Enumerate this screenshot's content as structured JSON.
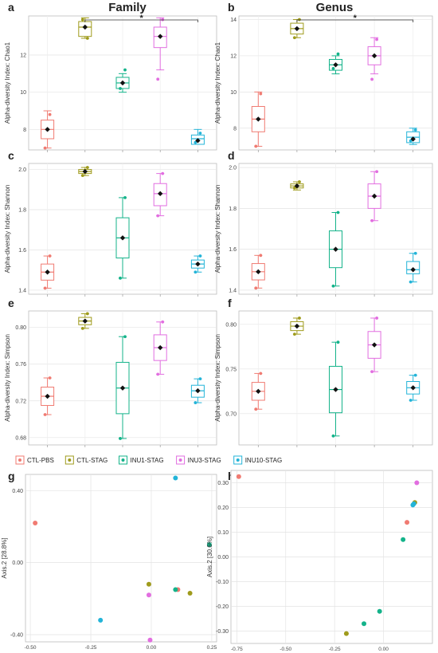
{
  "headers": {
    "left": "Family",
    "right": "Genus"
  },
  "colors": {
    "CTL-PBS": "#F07B72",
    "CTL-STAG": "#9F9B1C",
    "INU1-STAG": "#14B38A",
    "INU3-STAG": "#E26EE0",
    "INU10-STAG": "#23B4D8"
  },
  "legend": [
    {
      "name": "CTL-PBS",
      "color": "#F07B72"
    },
    {
      "name": "CTL-STAG",
      "color": "#9F9B1C"
    },
    {
      "name": "INU1-STAG",
      "color": "#14B38A"
    },
    {
      "name": "INU3-STAG",
      "color": "#E26EE0"
    },
    {
      "name": "INU10-STAG",
      "color": "#23B4D8"
    }
  ],
  "chart_data": [
    {
      "panel": "a",
      "type": "box",
      "column_header": "Family",
      "xlabel": "",
      "ylabel": "Alpha-diversity Index: Chao1",
      "ylim": [
        6.9,
        14.1
      ],
      "yticks": [
        8,
        10,
        12
      ],
      "categories": [
        "CTL-PBS",
        "CTL-STAG",
        "INU1-STAG",
        "INU3-STAG",
        "INU10-STAG"
      ],
      "boxes": [
        {
          "q1": 7.5,
          "median": 8.0,
          "q3": 8.5,
          "min": 7.0,
          "max": 9.0,
          "mean": 8.0,
          "points": [
            7.0,
            8.8
          ]
        },
        {
          "q1": 13.0,
          "median": 13.5,
          "q3": 13.8,
          "min": 12.9,
          "max": 14.0,
          "mean": 13.5,
          "points": [
            13.9,
            12.9
          ]
        },
        {
          "q1": 10.2,
          "median": 10.5,
          "q3": 10.8,
          "min": 10.0,
          "max": 11.0,
          "mean": 10.5,
          "points": [
            10.2,
            11.2
          ]
        },
        {
          "q1": 12.4,
          "median": 13.0,
          "q3": 13.5,
          "min": 11.2,
          "max": 14.0,
          "mean": 13.0,
          "points": [
            10.7,
            13.9
          ]
        },
        {
          "q1": 7.2,
          "median": 7.5,
          "q3": 7.7,
          "min": 7.2,
          "max": 8.0,
          "mean": 7.4,
          "points": [
            7.3,
            7.8
          ]
        }
      ],
      "significance": {
        "from": "CTL-STAG",
        "to": "INU10-STAG",
        "label": "*"
      }
    },
    {
      "panel": "b",
      "type": "box",
      "column_header": "Genus",
      "xlabel": "",
      "ylabel": "Alpha-diversity Index: Chao1",
      "ylim": [
        6.8,
        14.2
      ],
      "yticks": [
        8,
        10,
        12,
        14
      ],
      "categories": [
        "CTL-PBS",
        "CTL-STAG",
        "INU1-STAG",
        "INU3-STAG",
        "INU10-STAG"
      ],
      "boxes": [
        {
          "q1": 7.8,
          "median": 8.5,
          "q3": 9.2,
          "min": 7.0,
          "max": 10.0,
          "mean": 8.5,
          "points": [
            7.0,
            9.9
          ]
        },
        {
          "q1": 13.2,
          "median": 13.5,
          "q3": 13.8,
          "min": 13.0,
          "max": 14.0,
          "mean": 13.5,
          "points": [
            13.0,
            14.0
          ]
        },
        {
          "q1": 11.2,
          "median": 11.5,
          "q3": 11.8,
          "min": 11.0,
          "max": 12.0,
          "mean": 11.5,
          "points": [
            11.3,
            12.1
          ]
        },
        {
          "q1": 11.5,
          "median": 12.0,
          "q3": 12.5,
          "min": 11.0,
          "max": 13.0,
          "mean": 12.0,
          "points": [
            10.7,
            12.9
          ]
        },
        {
          "q1": 7.2,
          "median": 7.5,
          "q3": 7.8,
          "min": 7.1,
          "max": 8.0,
          "mean": 7.4,
          "points": [
            7.3,
            7.9
          ]
        }
      ],
      "significance": {
        "from": "CTL-STAG",
        "to": "INU10-STAG",
        "label": "*"
      }
    },
    {
      "panel": "c",
      "type": "box",
      "xlabel": "",
      "ylabel": "Alpha-diversity Index: Shannon",
      "ylim": [
        1.38,
        2.03
      ],
      "yticks": [
        1.4,
        1.6,
        1.8,
        2.0
      ],
      "categories": [
        "CTL-PBS",
        "CTL-STAG",
        "INU1-STAG",
        "INU3-STAG",
        "INU10-STAG"
      ],
      "boxes": [
        {
          "q1": 1.45,
          "median": 1.49,
          "q3": 1.53,
          "min": 1.41,
          "max": 1.57,
          "mean": 1.49,
          "points": [
            1.41,
            1.57
          ]
        },
        {
          "q1": 1.98,
          "median": 1.99,
          "q3": 2.0,
          "min": 1.97,
          "max": 2.01,
          "mean": 1.99,
          "points": [
            1.97,
            2.01
          ]
        },
        {
          "q1": 1.56,
          "median": 1.66,
          "q3": 1.76,
          "min": 1.46,
          "max": 1.86,
          "mean": 1.66,
          "points": [
            1.46,
            1.86
          ]
        },
        {
          "q1": 1.82,
          "median": 1.88,
          "q3": 1.93,
          "min": 1.77,
          "max": 1.98,
          "mean": 1.88,
          "points": [
            1.77,
            1.98
          ]
        },
        {
          "q1": 1.51,
          "median": 1.53,
          "q3": 1.55,
          "min": 1.49,
          "max": 1.57,
          "mean": 1.53,
          "points": [
            1.49,
            1.57
          ]
        }
      ]
    },
    {
      "panel": "d",
      "type": "box",
      "xlabel": "",
      "ylabel": "Alpha-diversity Index: Shannon",
      "ylim": [
        1.38,
        2.02
      ],
      "yticks": [
        1.4,
        1.6,
        1.8,
        2.0
      ],
      "categories": [
        "CTL-PBS",
        "CTL-STAG",
        "INU1-STAG",
        "INU3-STAG",
        "INU10-STAG"
      ],
      "boxes": [
        {
          "q1": 1.45,
          "median": 1.49,
          "q3": 1.53,
          "min": 1.41,
          "max": 1.57,
          "mean": 1.49,
          "points": [
            1.41,
            1.57
          ]
        },
        {
          "q1": 1.9,
          "median": 1.91,
          "q3": 1.92,
          "min": 1.89,
          "max": 1.93,
          "mean": 1.91,
          "points": [
            1.9,
            1.93
          ]
        },
        {
          "q1": 1.51,
          "median": 1.6,
          "q3": 1.69,
          "min": 1.42,
          "max": 1.78,
          "mean": 1.6,
          "points": [
            1.42,
            1.78
          ]
        },
        {
          "q1": 1.8,
          "median": 1.86,
          "q3": 1.92,
          "min": 1.74,
          "max": 1.98,
          "mean": 1.86,
          "points": [
            1.74,
            1.98
          ]
        },
        {
          "q1": 1.48,
          "median": 1.5,
          "q3": 1.54,
          "min": 1.44,
          "max": 1.58,
          "mean": 1.5,
          "points": [
            1.44,
            1.58
          ]
        }
      ]
    },
    {
      "panel": "e",
      "type": "box",
      "xlabel": "",
      "ylabel": "Alpha-diversity Index: Simpson",
      "ylim": [
        0.672,
        0.818
      ],
      "yticks": [
        0.68,
        0.72,
        0.76,
        0.8
      ],
      "categories": [
        "CTL-PBS",
        "CTL-STAG",
        "INU1-STAG",
        "INU3-STAG",
        "INU10-STAG"
      ],
      "boxes": [
        {
          "q1": 0.715,
          "median": 0.725,
          "q3": 0.735,
          "min": 0.705,
          "max": 0.745,
          "mean": 0.725,
          "points": [
            0.705,
            0.745
          ]
        },
        {
          "q1": 0.803,
          "median": 0.807,
          "q3": 0.811,
          "min": 0.799,
          "max": 0.815,
          "mean": 0.807,
          "points": [
            0.799,
            0.815
          ]
        },
        {
          "q1": 0.706,
          "median": 0.734,
          "q3": 0.762,
          "min": 0.679,
          "max": 0.79,
          "mean": 0.734,
          "points": [
            0.679,
            0.79
          ]
        },
        {
          "q1": 0.764,
          "median": 0.778,
          "q3": 0.792,
          "min": 0.749,
          "max": 0.806,
          "mean": 0.778,
          "points": [
            0.749,
            0.806
          ]
        },
        {
          "q1": 0.724,
          "median": 0.731,
          "q3": 0.737,
          "min": 0.718,
          "max": 0.744,
          "mean": 0.731,
          "points": [
            0.718,
            0.744
          ]
        }
      ]
    },
    {
      "panel": "f",
      "type": "box",
      "xlabel": "",
      "ylabel": "Alpha-diversity Index: Simpson",
      "ylim": [
        0.665,
        0.815
      ],
      "yticks": [
        0.7,
        0.75,
        0.8
      ],
      "categories": [
        "CTL-PBS",
        "CTL-STAG",
        "INU1-STAG",
        "INU3-STAG",
        "INU10-STAG"
      ],
      "boxes": [
        {
          "q1": 0.715,
          "median": 0.725,
          "q3": 0.735,
          "min": 0.705,
          "max": 0.745,
          "mean": 0.725,
          "points": [
            0.705,
            0.745
          ]
        },
        {
          "q1": 0.793,
          "median": 0.798,
          "q3": 0.803,
          "min": 0.789,
          "max": 0.807,
          "mean": 0.798,
          "points": [
            0.789,
            0.807
          ]
        },
        {
          "q1": 0.701,
          "median": 0.727,
          "q3": 0.753,
          "min": 0.675,
          "max": 0.78,
          "mean": 0.727,
          "points": [
            0.675,
            0.78
          ]
        },
        {
          "q1": 0.762,
          "median": 0.777,
          "q3": 0.792,
          "min": 0.747,
          "max": 0.807,
          "mean": 0.777,
          "points": [
            0.747,
            0.807
          ]
        },
        {
          "q1": 0.722,
          "median": 0.729,
          "q3": 0.736,
          "min": 0.715,
          "max": 0.743,
          "mean": 0.729,
          "points": [
            0.715,
            0.743
          ]
        }
      ]
    },
    {
      "panel": "g",
      "type": "scatter",
      "xlabel": "",
      "ylabel": "Axis.2   [28.8%]",
      "xlim": [
        -0.52,
        0.27
      ],
      "ylim": [
        -0.44,
        0.49
      ],
      "xticks": [
        -0.5,
        -0.25,
        0.0,
        0.25
      ],
      "yticks": [
        -0.4,
        0.0,
        0.4
      ],
      "points": [
        {
          "x": -0.48,
          "y": 0.22,
          "group": "CTL-PBS"
        },
        {
          "x": 0.11,
          "y": -0.15,
          "group": "CTL-PBS"
        },
        {
          "x": -0.01,
          "y": -0.12,
          "group": "CTL-STAG"
        },
        {
          "x": 0.16,
          "y": -0.17,
          "group": "CTL-STAG"
        },
        {
          "x": 0.24,
          "y": 0.1,
          "group": "INU1-STAG"
        },
        {
          "x": 0.1,
          "y": -0.15,
          "group": "INU1-STAG"
        },
        {
          "x": -0.01,
          "y": -0.18,
          "group": "INU3-STAG"
        },
        {
          "x": -0.005,
          "y": -0.43,
          "group": "INU3-STAG"
        },
        {
          "x": 0.1,
          "y": 0.47,
          "group": "INU10-STAG"
        },
        {
          "x": -0.21,
          "y": -0.32,
          "group": "INU10-STAG"
        }
      ]
    },
    {
      "panel": "h",
      "type": "scatter",
      "xlabel": "",
      "ylabel": "Axis.2   [30.6%]",
      "xlim": [
        -0.78,
        0.25
      ],
      "ylim": [
        -0.35,
        0.35
      ],
      "xticks": [
        -0.75,
        -0.5,
        -0.25,
        0.0
      ],
      "yticks": [
        -0.3,
        -0.2,
        -0.1,
        0.0,
        0.1,
        0.2,
        0.3
      ],
      "points": [
        {
          "x": -0.74,
          "y": 0.325,
          "group": "CTL-PBS"
        },
        {
          "x": 0.12,
          "y": 0.14,
          "group": "CTL-PBS"
        },
        {
          "x": -0.19,
          "y": -0.31,
          "group": "CTL-STAG"
        },
        {
          "x": 0.16,
          "y": 0.22,
          "group": "CTL-STAG"
        },
        {
          "x": -0.02,
          "y": -0.22,
          "group": "INU1-STAG"
        },
        {
          "x": -0.1,
          "y": -0.27,
          "group": "INU1-STAG"
        },
        {
          "x": 0.1,
          "y": 0.07,
          "group": "INU1-STAG"
        },
        {
          "x": 0.17,
          "y": 0.3,
          "group": "INU3-STAG"
        },
        {
          "x": 0.15,
          "y": 0.21,
          "group": "INU10-STAG"
        },
        {
          "x": 0.155,
          "y": 0.215,
          "group": "INU10-STAG"
        }
      ]
    }
  ]
}
